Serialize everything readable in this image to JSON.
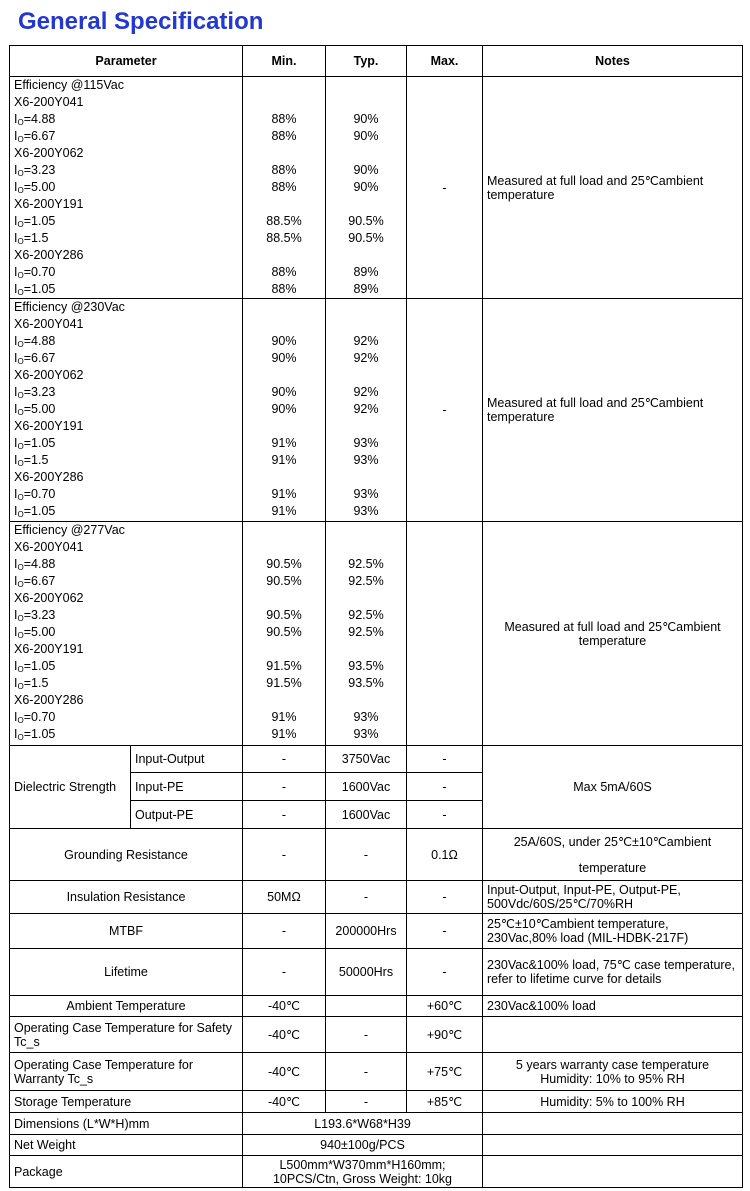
{
  "header": {
    "title": "General Specification",
    "columns": [
      "Parameter",
      "Min.",
      "Typ.",
      "Max.",
      "Notes"
    ]
  },
  "efficiency": [
    {
      "title": "Efficiency @115Vac",
      "models": [
        {
          "name": "X6-200Y041",
          "rows": [
            {
              "param": [
                "I",
                "O",
                "=4.88"
              ],
              "min": "88%",
              "typ": "90%"
            },
            {
              "param": [
                "I",
                "O",
                "=6.67"
              ],
              "min": "88%",
              "typ": "90%"
            }
          ]
        },
        {
          "name": "X6-200Y062",
          "rows": [
            {
              "param": [
                "I",
                "O",
                "=3.23"
              ],
              "min": "88%",
              "typ": "90%"
            },
            {
              "param": [
                "I",
                "O",
                "=5.00"
              ],
              "min": "88%",
              "typ": "90%"
            }
          ]
        },
        {
          "name": "X6-200Y191",
          "rows": [
            {
              "param": [
                "I",
                "O",
                "=1.05"
              ],
              "min": "88.5%",
              "typ": "90.5%"
            },
            {
              "param": [
                "I",
                "O",
                "=1.5"
              ],
              "min": "88.5%",
              "typ": "90.5%"
            }
          ]
        },
        {
          "name": "X6-200Y286",
          "rows": [
            {
              "param": [
                "I",
                "O",
                "=0.70"
              ],
              "min": "88%",
              "typ": "89%"
            },
            {
              "param": [
                "I",
                "O",
                "=1.05"
              ],
              "min": "88%",
              "typ": "89%"
            }
          ]
        }
      ],
      "max": "-",
      "notes": "Measured at full load and 25℃ambient temperature"
    },
    {
      "title": "Efficiency @230Vac",
      "models": [
        {
          "name": "X6-200Y041",
          "rows": [
            {
              "param": [
                "I",
                "O",
                "=4.88"
              ],
              "min": "90%",
              "typ": "92%"
            },
            {
              "param": [
                "I",
                "O",
                "=6.67"
              ],
              "min": "90%",
              "typ": "92%"
            }
          ]
        },
        {
          "name": "X6-200Y062",
          "rows": [
            {
              "param": [
                "I",
                "O",
                "=3.23"
              ],
              "min": "90%",
              "typ": "92%"
            },
            {
              "param": [
                "I",
                "O",
                "=5.00"
              ],
              "min": "90%",
              "typ": "92%"
            }
          ]
        },
        {
          "name": "X6-200Y191",
          "rows": [
            {
              "param": [
                "I",
                "O",
                "=1.05"
              ],
              "min": "91%",
              "typ": "93%"
            },
            {
              "param": [
                "I",
                "O",
                "=1.5"
              ],
              "min": "91%",
              "typ": "93%"
            }
          ]
        },
        {
          "name": "X6-200Y286",
          "rows": [
            {
              "param": [
                "I",
                "O",
                "=0.70"
              ],
              "min": "91%",
              "typ": "93%"
            },
            {
              "param": [
                "I",
                "O",
                "=1.05"
              ],
              "min": "91%",
              "typ": "93%"
            }
          ]
        }
      ],
      "max": "-",
      "notes": "Measured at full load and 25℃ambient temperature"
    },
    {
      "title": "Efficiency @277Vac",
      "models": [
        {
          "name": "X6-200Y041",
          "rows": [
            {
              "param": [
                "I",
                "O",
                "=4.88"
              ],
              "min": "90.5%",
              "typ": "92.5%"
            },
            {
              "param": [
                "I",
                "O",
                "=6.67"
              ],
              "min": "90.5%",
              "typ": "92.5%"
            }
          ]
        },
        {
          "name": "X6-200Y062",
          "rows": [
            {
              "param": [
                "I",
                "O",
                "=3.23"
              ],
              "min": "90.5%",
              "typ": "92.5%"
            },
            {
              "param": [
                "I",
                "O",
                "=5.00"
              ],
              "min": "90.5%",
              "typ": "92.5%"
            }
          ]
        },
        {
          "name": "X6-200Y191",
          "rows": [
            {
              "param": [
                "I",
                "O",
                "=1.05"
              ],
              "min": "91.5%",
              "typ": "93.5%"
            },
            {
              "param": [
                "I",
                "O",
                "=1.5"
              ],
              "min": "91.5%",
              "typ": "93.5%"
            }
          ]
        },
        {
          "name": "X6-200Y286",
          "rows": [
            {
              "param": [
                "I",
                "O",
                "=0.70"
              ],
              "min": "91%",
              "typ": "93%"
            },
            {
              "param": [
                "I",
                "O",
                "=1.05"
              ],
              "min": "91%",
              "typ": "93%"
            }
          ]
        }
      ],
      "notes": "Measured at full load and 25℃ambient temperature"
    }
  ],
  "dielectric": {
    "label": "Dielectric Strength",
    "rows": [
      {
        "name": "Input-Output",
        "min": "-",
        "typ": "3750Vac",
        "max": "-"
      },
      {
        "name": "Input-PE",
        "min": "-",
        "typ": "1600Vac",
        "max": "-"
      },
      {
        "name": "Output-PE",
        "min": "-",
        "typ": "1600Vac",
        "max": "-"
      }
    ],
    "notes": "Max 5mA/60S"
  },
  "rows": [
    {
      "parameter": "Grounding Resistance",
      "min": "-",
      "typ": "-",
      "max": "0.1Ω",
      "notes": [
        "25A/60S, under 25℃±10℃ambient",
        "temperature"
      ]
    },
    {
      "parameter": "Insulation Resistance",
      "min": "50MΩ",
      "typ": "-",
      "max": "-",
      "notes": [
        "Input-Output, Input-PE, Output-PE,",
        "500Vdc/60S/25℃/70%RH"
      ]
    },
    {
      "parameter": "MTBF",
      "min": "-",
      "typ": "200000Hrs",
      "max": "-",
      "notes": [
        "25℃±10℃ambient temperature,",
        "230Vac,80% load (MIL-HDBK-217F)"
      ]
    },
    {
      "parameter": "Lifetime",
      "min": "-",
      "typ": "50000Hrs",
      "max": "-",
      "notes": [
        "230Vac&100% load, 75℃  case temperature, refer to lifetime curve for details"
      ]
    },
    {
      "parameter": "Ambient Temperature",
      "min": "-40℃",
      "max": "+60℃",
      "notes": [
        "230Vac&100% load"
      ]
    },
    {
      "parameter": "Operating Case Temperature for Safety Tc_s",
      "min": "-40℃",
      "typ": "-",
      "max": "+90℃"
    },
    {
      "parameter": "Operating Case Temperature for Warranty Tc_s",
      "min": "-40℃",
      "typ": "-",
      "max": "+75℃",
      "notes": [
        "5 years warranty case temperature",
        "Humidity: 10% to 95% RH"
      ]
    },
    {
      "parameter": "Storage Temperature",
      "min": "-40℃",
      "typ": "-",
      "max": "+85℃",
      "notes": [
        "Humidity: 5% to 100% RH"
      ]
    }
  ],
  "merged": [
    {
      "parameter": "Dimensions (L*W*H)mm",
      "value": [
        "L193.6*W68*H39"
      ]
    },
    {
      "parameter": "Net Weight",
      "value": [
        "940±100g/PCS"
      ]
    },
    {
      "parameter": "Package",
      "value": [
        "L500mm*W370mm*H160mm;",
        "10PCS/Ctn, Gross Weight: 10kg"
      ]
    }
  ]
}
